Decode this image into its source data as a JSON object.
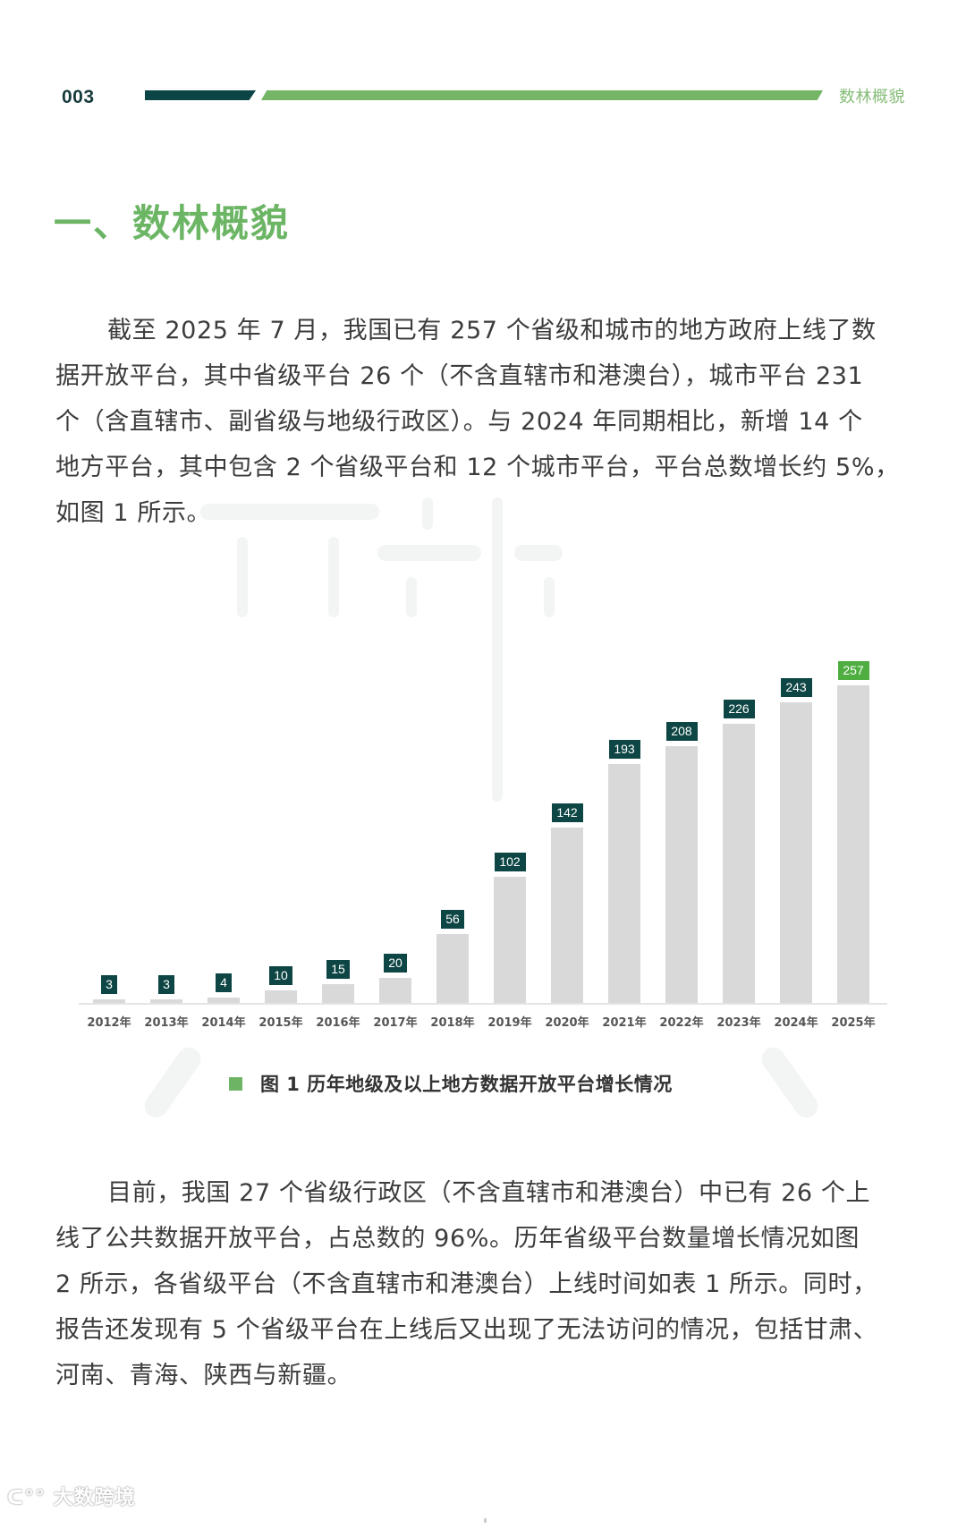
{
  "header": {
    "page_number": "003",
    "section_label": "数林概貌",
    "colors": {
      "dark_bar": "#0c4545",
      "green_bar": "#74b566"
    }
  },
  "title": "一、数林概貌",
  "paragraph1": {
    "lines": [
      "截至 2025 年 7 月，我国已有 257 个省级和城市的地方政府上线了数",
      "据开放平台，其中省级平台 26 个（不含直辖市和港澳台），城市平台 231",
      "个（含直辖市、副省级与地级行政区）。与 2024 年同期相比，新增 14 个",
      "地方平台，其中包含 2 个省级平台和 12 个城市平台，平台总数增长约 5%，",
      "如图 1 所示。"
    ]
  },
  "chart_data": {
    "type": "bar",
    "title": "图 1  历年地级及以上地方数据开放平台增长情况",
    "categories": [
      "2012年",
      "2013年",
      "2014年",
      "2015年",
      "2016年",
      "2017年",
      "2018年",
      "2019年",
      "2020年",
      "2021年",
      "2022年",
      "2023年",
      "2024年",
      "2025年"
    ],
    "values": [
      3,
      3,
      4,
      10,
      15,
      20,
      56,
      102,
      142,
      193,
      208,
      226,
      243,
      257
    ],
    "labels": [
      "3",
      "3",
      "4",
      "10",
      "15",
      "20",
      "56",
      "102",
      "142",
      "193",
      "208",
      "226",
      "243",
      "257"
    ],
    "highlight_index": 13,
    "xlabel": "",
    "ylabel": "",
    "ylim": [
      0,
      257
    ],
    "grid": false,
    "legend": null,
    "colors": {
      "bar": "#d9d9d9",
      "label": "#0d4644",
      "highlight_label": "#4fae40"
    }
  },
  "caption": {
    "text": "图 1  历年地级及以上地方数据开放平台增长情况"
  },
  "paragraph2": {
    "lines": [
      "目前，我国 27 个省级行政区（不含直辖市和港澳台）中已有 26 个上",
      "线了公共数据开放平台，占总数的 96%。历年省级平台数量增长情况如图",
      "2 所示，各省级平台（不含直辖市和港澳台）上线时间如表 1 所示。同时，",
      "报告还发现有 5 个省级平台在上线后又出现了无法访问的情况，包括甘肃、",
      "河南、青海、陕西与新疆。"
    ]
  },
  "footer": {
    "watermark_logo": "大数跨境"
  }
}
